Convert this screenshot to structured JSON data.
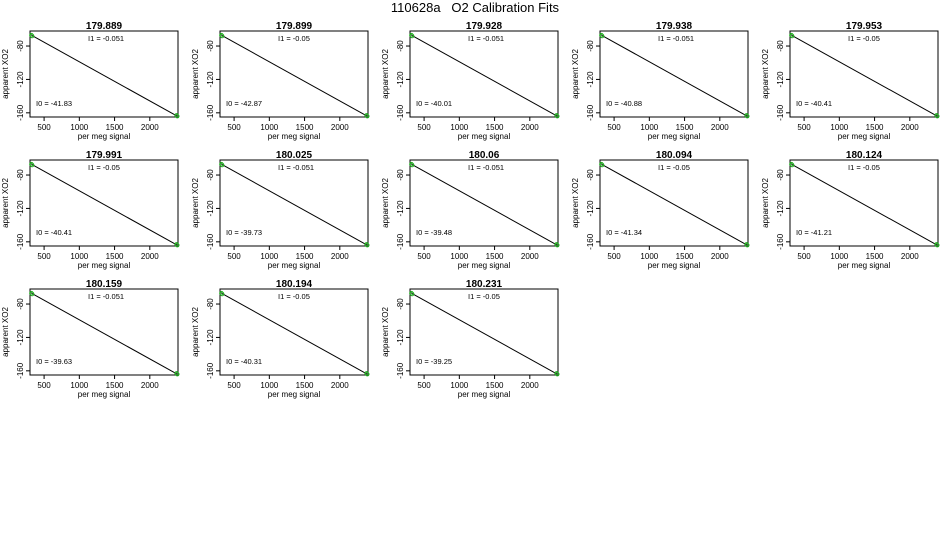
{
  "title": "110628a   O2 Calibration Fits",
  "chart_data": {
    "type": "scatter",
    "xlabel": "per meg signal",
    "ylabel": "apparent XO2",
    "xlim": [
      300,
      2400
    ],
    "ylim": [
      -165,
      -62
    ],
    "xticks": [
      500,
      1000,
      1500,
      2000
    ],
    "yticks": [
      -80,
      -120,
      -160
    ],
    "fit_line_color": "#000000",
    "point_color": "#22aa22",
    "panels": [
      {
        "title": "179.889",
        "i1": "-0.051",
        "i0": "-41.83",
        "points": [
          [
            320,
            -67
          ],
          [
            330,
            -68
          ],
          [
            2380,
            -163
          ],
          [
            2390,
            -164
          ]
        ]
      },
      {
        "title": "179.899",
        "i1": "-0.05",
        "i0": "-42.87",
        "points": [
          [
            320,
            -67
          ],
          [
            330,
            -68
          ],
          [
            2380,
            -163
          ],
          [
            2390,
            -164
          ]
        ]
      },
      {
        "title": "179.928",
        "i1": "-0.051",
        "i0": "-40.01",
        "points": [
          [
            320,
            -67
          ],
          [
            330,
            -68
          ],
          [
            2380,
            -163
          ],
          [
            2390,
            -164
          ]
        ]
      },
      {
        "title": "179.938",
        "i1": "-0.051",
        "i0": "-40.88",
        "points": [
          [
            320,
            -67
          ],
          [
            330,
            -68
          ],
          [
            2380,
            -163
          ],
          [
            2390,
            -164
          ]
        ]
      },
      {
        "title": "179.953",
        "i1": "-0.05",
        "i0": "-40.41",
        "points": [
          [
            320,
            -67
          ],
          [
            330,
            -68
          ],
          [
            2380,
            -163
          ],
          [
            2390,
            -164
          ]
        ]
      },
      {
        "title": "179.991",
        "i1": "-0.05",
        "i0": "-40.41",
        "points": [
          [
            320,
            -67
          ],
          [
            330,
            -68
          ],
          [
            2380,
            -163
          ],
          [
            2390,
            -164
          ]
        ]
      },
      {
        "title": "180.025",
        "i1": "-0.051",
        "i0": "-39.73",
        "points": [
          [
            320,
            -67
          ],
          [
            330,
            -68
          ],
          [
            2380,
            -163
          ],
          [
            2390,
            -164
          ]
        ]
      },
      {
        "title": "180.06",
        "i1": "-0.051",
        "i0": "-39.48",
        "points": [
          [
            320,
            -67
          ],
          [
            330,
            -68
          ],
          [
            2380,
            -163
          ],
          [
            2390,
            -164
          ]
        ]
      },
      {
        "title": "180.094",
        "i1": "-0.05",
        "i0": "-41.34",
        "points": [
          [
            320,
            -67
          ],
          [
            330,
            -68
          ],
          [
            2380,
            -163
          ],
          [
            2390,
            -164
          ]
        ]
      },
      {
        "title": "180.124",
        "i1": "-0.05",
        "i0": "-41.21",
        "points": [
          [
            320,
            -67
          ],
          [
            330,
            -68
          ],
          [
            2380,
            -163
          ],
          [
            2390,
            -164
          ]
        ]
      },
      {
        "title": "180.159",
        "i1": "-0.051",
        "i0": "-39.63",
        "points": [
          [
            320,
            -67
          ],
          [
            330,
            -68
          ],
          [
            2380,
            -163
          ],
          [
            2390,
            -164
          ]
        ]
      },
      {
        "title": "180.194",
        "i1": "-0.05",
        "i0": "-40.31",
        "points": [
          [
            320,
            -67
          ],
          [
            330,
            -68
          ],
          [
            2380,
            -163
          ],
          [
            2390,
            -164
          ]
        ]
      },
      {
        "title": "180.231",
        "i1": "-0.05",
        "i0": "-39.25",
        "points": [
          [
            320,
            -67
          ],
          [
            330,
            -68
          ],
          [
            2380,
            -163
          ],
          [
            2390,
            -164
          ]
        ]
      }
    ]
  }
}
